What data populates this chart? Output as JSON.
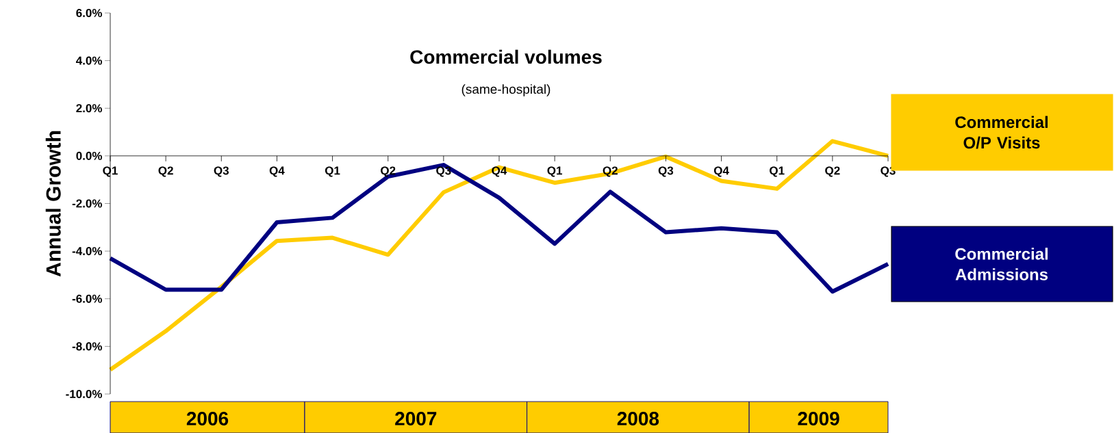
{
  "chart_data": {
    "type": "line",
    "title": "Commercial volumes",
    "subtitle": "(same-hospital)",
    "ylabel": "Annual Growth",
    "categories": [
      "Q1",
      "Q2",
      "Q3",
      "Q4",
      "Q1",
      "Q2",
      "Q3",
      "Q4",
      "Q1",
      "Q2",
      "Q3",
      "Q4",
      "Q1",
      "Q2",
      "Q3"
    ],
    "series": [
      {
        "name": "Commercial O/P Visits",
        "color": "#ffcc00",
        "values": [
          -8.98,
          -7.36,
          -5.5,
          -3.57,
          -3.44,
          -4.15,
          -1.53,
          -0.48,
          -1.13,
          -0.74,
          -0.03,
          -1.05,
          -1.38,
          0.62,
          0.0
        ]
      },
      {
        "name": "Commercial Admissions",
        "color": "#000080",
        "values": [
          -4.3,
          -5.62,
          -5.62,
          -2.79,
          -2.6,
          -0.87,
          -0.38,
          -1.76,
          -3.69,
          -1.51,
          -3.21,
          -3.04,
          -3.21,
          -5.7,
          -4.54
        ]
      }
    ],
    "ylim": [
      -10,
      6
    ],
    "yticks": [
      {
        "value": -10,
        "label": "-10.0%"
      },
      {
        "value": -8,
        "label": "-8.0%"
      },
      {
        "value": -6,
        "label": "-6.0%"
      },
      {
        "value": -4,
        "label": "-4.0%"
      },
      {
        "value": -2,
        "label": "-2.0%"
      },
      {
        "value": 0,
        "label": "0.0%"
      },
      {
        "value": 2,
        "label": "2.0%"
      },
      {
        "value": 4,
        "label": "4.0%"
      },
      {
        "value": 6,
        "label": "6.0%"
      }
    ],
    "annotations": [
      "2006",
      "2007",
      "2008",
      "2009"
    ],
    "grid": false,
    "legend": "right",
    "marker": "none",
    "line_style": "solid"
  }
}
